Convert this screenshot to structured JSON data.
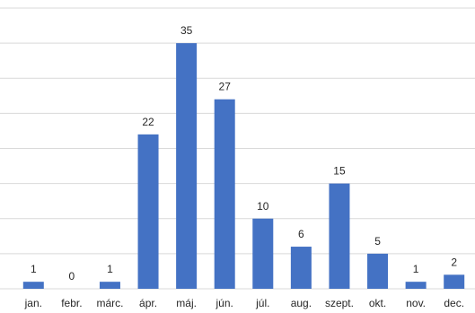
{
  "chart_data": {
    "type": "bar",
    "categories": [
      "jan.",
      "febr.",
      "márc.",
      "ápr.",
      "máj.",
      "jún.",
      "júl.",
      "aug.",
      "szept.",
      "okt.",
      "nov.",
      "dec."
    ],
    "values": [
      1,
      0,
      1,
      22,
      35,
      27,
      10,
      6,
      15,
      5,
      1,
      2
    ],
    "title": "",
    "xlabel": "",
    "ylabel": "",
    "ylim": [
      0,
      40
    ],
    "grid": true,
    "data_labels": true,
    "legend": "none",
    "colors": {
      "bar": "#4472c4",
      "grid": "#d9d9d9",
      "text": "#262626"
    }
  }
}
